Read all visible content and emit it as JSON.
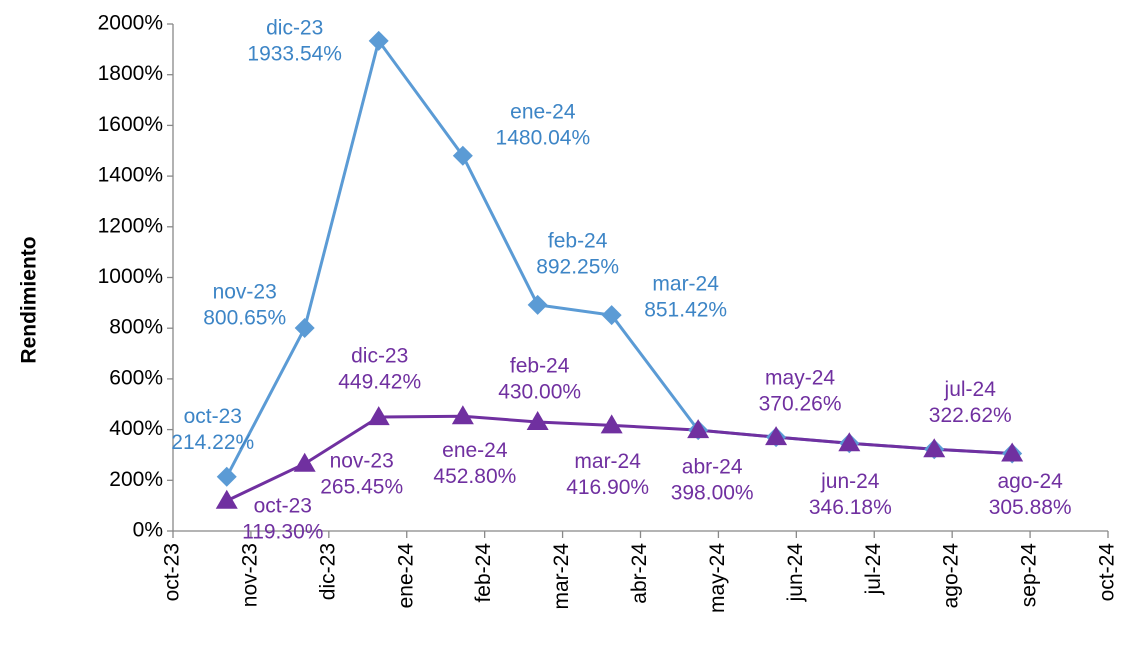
{
  "chart_data": {
    "type": "line",
    "y_label": "Rendimiento",
    "xlim": [
      0,
      12
    ],
    "xticks": [
      {
        "value": 0,
        "label": "oct-23"
      },
      {
        "value": 1,
        "label": "nov-23"
      },
      {
        "value": 2,
        "label": "dic-23"
      },
      {
        "value": 3,
        "label": "ene-24"
      },
      {
        "value": 4,
        "label": "feb-24"
      },
      {
        "value": 5,
        "label": "mar-24"
      },
      {
        "value": 6,
        "label": "abr-24"
      },
      {
        "value": 7,
        "label": "may-24"
      },
      {
        "value": 8,
        "label": "jun-24"
      },
      {
        "value": 9,
        "label": "jul-24"
      },
      {
        "value": 10,
        "label": "ago-24"
      },
      {
        "value": 11,
        "label": "sep-24"
      },
      {
        "value": 12,
        "label": "oct-24"
      }
    ],
    "ylim": [
      0,
      2000
    ],
    "yticks": [
      {
        "value": 0,
        "label": "0%"
      },
      {
        "value": 200,
        "label": "200%"
      },
      {
        "value": 400,
        "label": "400%"
      },
      {
        "value": 600,
        "label": "600%"
      },
      {
        "value": 800,
        "label": "800%"
      },
      {
        "value": 1000,
        "label": "1000%"
      },
      {
        "value": 1200,
        "label": "1200%"
      },
      {
        "value": 1400,
        "label": "1400%"
      },
      {
        "value": 1600,
        "label": "1600%"
      },
      {
        "value": 1800,
        "label": "1800%"
      },
      {
        "value": 2000,
        "label": "2000%"
      }
    ],
    "grid": false,
    "x": [
      0.69,
      1.69,
      2.64,
      3.72,
      4.68,
      5.63,
      6.74,
      7.74,
      8.68,
      9.77,
      10.77
    ],
    "series": [
      {
        "color": "#5b9bd5",
        "label_color": "#3d85c6",
        "marker": "diamond",
        "values": [
          214.22,
          800.65,
          1933.54,
          1480.04,
          892.25,
          851.42,
          398.0,
          370.26,
          346.18,
          322.62,
          305.88
        ],
        "point_labels": [
          "oct-23",
          "nov-23",
          "dic-23",
          "ene-24",
          "feb-24",
          "mar-24",
          null,
          null,
          null,
          null,
          null
        ],
        "value_labels": [
          "214.22%",
          "800.65%",
          "1933.54%",
          "1480.04%",
          "892.25%",
          "851.42%",
          null,
          null,
          null,
          null,
          null
        ]
      },
      {
        "color": "#7030a0",
        "label_color": "#7030a0",
        "marker": "triangle",
        "values": [
          119.3,
          265.45,
          449.42,
          452.8,
          430.0,
          416.9,
          398.0,
          370.26,
          346.18,
          322.62,
          305.88
        ],
        "point_labels": [
          "oct-23",
          "nov-23",
          "dic-23",
          "ene-24",
          "feb-24",
          "mar-24",
          "abr-24",
          "may-24",
          "jun-24",
          "jul-24",
          "ago-24"
        ],
        "value_labels": [
          "119.30%",
          "265.45%",
          "449.42%",
          "452.80%",
          "430.00%",
          "416.90%",
          "398.00%",
          "370.26%",
          "346.18%",
          "322.62%",
          "305.88%"
        ]
      }
    ]
  }
}
